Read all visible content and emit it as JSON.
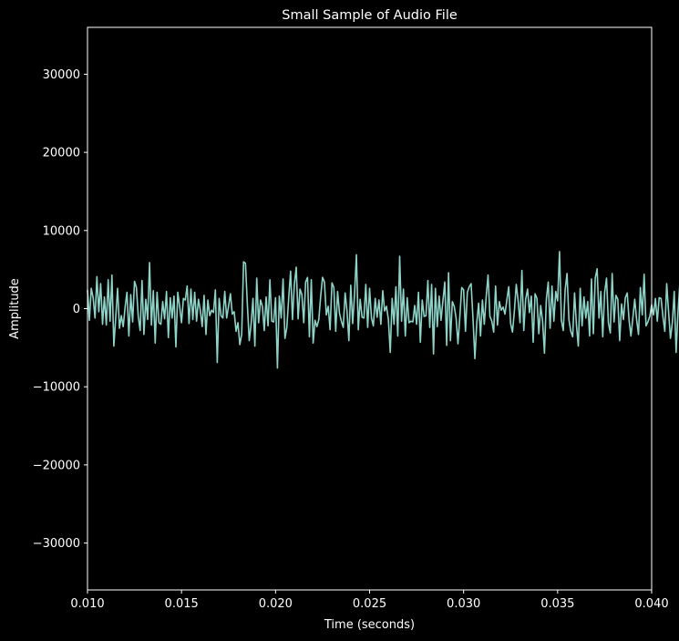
{
  "chart_data": {
    "type": "line",
    "title": "Small Sample of Audio File",
    "xlabel": "Time (seconds)",
    "ylabel": "Amplitude",
    "xlim": [
      0.01,
      0.04
    ],
    "ylim": [
      -36000,
      36000
    ],
    "x_ticks": [
      0.01,
      0.015,
      0.02,
      0.025,
      0.03,
      0.035,
      0.04
    ],
    "x_tick_labels": [
      "0.010",
      "0.015",
      "0.020",
      "0.025",
      "0.030",
      "0.035",
      "0.040"
    ],
    "y_ticks": [
      -30000,
      -20000,
      -10000,
      0,
      10000,
      20000,
      30000
    ],
    "y_tick_labels": [
      "−30000",
      "−20000",
      "−10000",
      "0",
      "10000",
      "20000",
      "30000"
    ],
    "grid": false,
    "background_color": "#000000",
    "axes_color": "#ffffff",
    "series": [
      {
        "color": "#8dd3c7",
        "sample_rate": 10000,
        "x_start": 0.01,
        "values": [
          2400,
          -1500,
          2600,
          1400,
          -1200,
          4100,
          -400,
          3200,
          -2000,
          1500,
          -2100,
          3700,
          -1600,
          4300,
          -4800,
          -1200,
          2600,
          -2500,
          -900,
          -2300,
          200,
          2100,
          -3500,
          1800,
          -1700,
          3500,
          2700,
          -1000,
          -2800,
          3600,
          -3300,
          1200,
          -1400,
          5900,
          -2100,
          2300,
          -4400,
          2100,
          -1800,
          -2000,
          900,
          -1300,
          2200,
          -3700,
          1400,
          -1200,
          1600,
          -4900,
          2100,
          300,
          -1800,
          1300,
          1100,
          2900,
          -1900,
          2500,
          -1400,
          2100,
          -1600,
          1200,
          -200,
          -2300,
          1700,
          -3300,
          1100,
          -900,
          -200,
          -500,
          2400,
          -6900,
          1300,
          -900,
          -1200,
          2200,
          -1200,
          300,
          1900,
          -700,
          -400,
          -2900,
          -1800,
          -4600,
          -3300,
          6000,
          5800,
          600,
          -4100,
          -2000,
          1300,
          -4800,
          3900,
          -1800,
          1100,
          300,
          -2800,
          1500,
          -2200,
          3700,
          -1600,
          -1700,
          1400,
          -7600,
          1600,
          -1200,
          3800,
          -3800,
          -2400,
          1400,
          4800,
          -1400,
          3100,
          5300,
          -1300,
          2500,
          1800,
          -1800,
          3400,
          4000,
          -3600,
          3700,
          -4400,
          -1500,
          -2300,
          -1400,
          1600,
          4000,
          3400,
          -800,
          300,
          -2700,
          3300,
          2700,
          -2900,
          2200,
          -600,
          -1600,
          -2400,
          2000,
          -300,
          -4100,
          3000,
          -1900,
          1800,
          6900,
          -2700,
          1200,
          -1100,
          -1200,
          3100,
          -2400,
          2600,
          -1200,
          -2200,
          1300,
          -1100,
          1100,
          -2000,
          2300,
          -300,
          300,
          -1400,
          -5600,
          1300,
          -2000,
          2800,
          -3500,
          6700,
          -1600,
          2500,
          -3500,
          1400,
          -1800,
          -1600,
          -1700,
          400,
          -2000,
          2100,
          -4300,
          1100,
          -1000,
          -900,
          3600,
          -2400,
          3100,
          -5800,
          2600,
          -2300,
          1600,
          -1500,
          1000,
          3400,
          -4700,
          4600,
          -4100,
          900,
          300,
          -1200,
          -4500,
          -1000,
          2700,
          2400,
          -2900,
          2100,
          2800,
          3200,
          -1300,
          -6400,
          -1800,
          700,
          -3500,
          1100,
          -2000,
          1500,
          4300,
          -1000,
          -1600,
          -3000,
          2900,
          -2100,
          900,
          -200,
          200,
          -700,
          1100,
          2800,
          -1900,
          -3000,
          -300,
          3100,
          1000,
          -1800,
          4900,
          -2800,
          1200,
          2500,
          -500,
          1600,
          -4300,
          1900,
          1300,
          -3200,
          400,
          -1600,
          -5700,
          1200,
          3400,
          -2500,
          2900,
          -1600,
          2200,
          1000,
          7300,
          -1500,
          -2800,
          2400,
          4500,
          -1400,
          -2900,
          -3600,
          2000,
          -2100,
          -4800,
          2600,
          -2200,
          1500,
          -1200,
          900,
          -3500,
          3800,
          -3200,
          3900,
          5100,
          -1200,
          2200,
          -3600,
          2100,
          3900,
          -1800,
          -3100,
          4500,
          -1700,
          1700,
          1200,
          -4100,
          600,
          -1400,
          1400,
          2000,
          -1500,
          -3500,
          -1200,
          1200,
          -1400,
          -3300,
          2700,
          -800,
          4400,
          -2200,
          -1700,
          -1000,
          500,
          -800,
          1300,
          -1600,
          1400,
          1300,
          -1000,
          -2900,
          3200,
          -400,
          -3800,
          -1800,
          2200,
          -5600,
          -500,
          3300,
          -2700,
          -5600,
          2200,
          -7500,
          -1700,
          900,
          -5500,
          2400,
          -1700,
          4100,
          -5600,
          -1200,
          -5500,
          3200,
          -700,
          -1800,
          -3600,
          -1900,
          2600,
          -2000,
          -3500,
          1700,
          -1700,
          4200,
          -2400,
          -5600,
          900,
          -1500,
          4700,
          -800,
          1800,
          -3400,
          -1800,
          2400,
          -1600,
          -2800,
          -600,
          3500,
          -1000,
          -1500,
          3000,
          -2000,
          -2600,
          5100,
          -3000,
          3800,
          -1600,
          -400,
          900,
          -600,
          1100,
          -3300,
          1500,
          -1900,
          4800,
          -2900,
          -300,
          1500,
          -3700,
          3000,
          -800,
          -1700,
          4200,
          -800,
          -1200,
          2800,
          -1100,
          2200,
          -2100,
          -2900,
          1800,
          -2000,
          3700,
          -1300
        ]
      }
    ]
  }
}
